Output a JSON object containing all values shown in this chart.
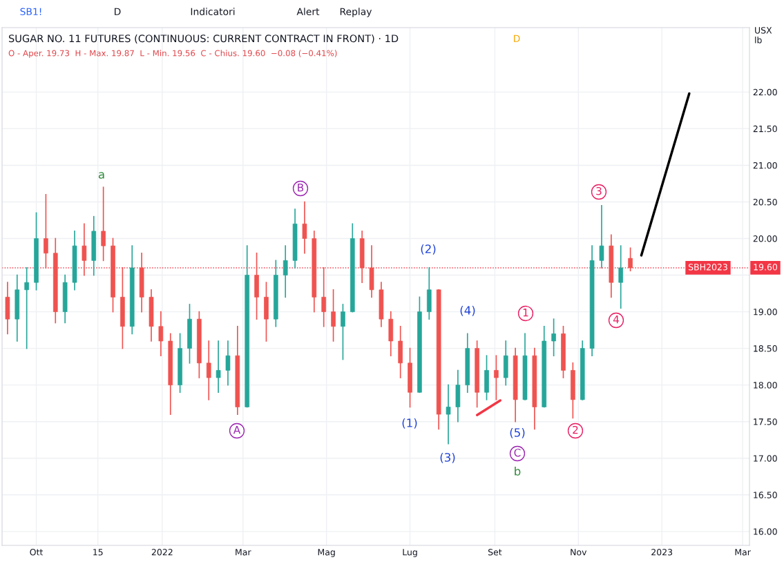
{
  "chart_data": {
    "type": "candlestick",
    "title": "SUGAR NO. 11 FUTURES (CONTINUOUS: CURRENT CONTRACT IN FRONT) · 1D",
    "subtitle": "O - Aper. 19.73  H - Max. 19.87  L - Min. 19.56  C - Chius. 19.60  −0.08 (−0.41%)",
    "ylabel": "USX lb",
    "x": [
      "2021-09-10",
      "2021-09-17",
      "2021-09-24",
      "2021-10-01",
      "2021-10-08",
      "2021-10-15",
      "2021-10-22",
      "2021-10-29",
      "2021-11-05",
      "2021-11-12",
      "2021-11-19",
      "2021-11-26",
      "2021-12-03",
      "2021-12-10",
      "2021-12-17",
      "2021-12-24",
      "2021-12-31",
      "2022-01-07",
      "2022-01-14",
      "2022-01-21",
      "2022-01-28",
      "2022-02-04",
      "2022-02-11",
      "2022-02-18",
      "2022-02-25",
      "2022-03-04",
      "2022-03-11",
      "2022-03-18",
      "2022-03-25",
      "2022-04-01",
      "2022-04-08",
      "2022-04-15",
      "2022-04-22",
      "2022-04-29",
      "2022-05-06",
      "2022-05-13",
      "2022-05-20",
      "2022-05-27",
      "2022-06-03",
      "2022-06-10",
      "2022-06-17",
      "2022-06-24",
      "2022-07-01",
      "2022-07-08",
      "2022-07-15",
      "2022-07-22",
      "2022-07-29",
      "2022-08-05",
      "2022-08-12",
      "2022-08-19",
      "2022-08-26",
      "2022-09-02",
      "2022-09-09",
      "2022-09-16",
      "2022-09-23",
      "2022-09-30",
      "2022-10-07",
      "2022-10-14",
      "2022-10-21",
      "2022-10-28",
      "2022-11-04",
      "2022-11-11",
      "2022-11-18",
      "2022-11-25",
      "2022-12-02",
      "2022-12-09"
    ],
    "ohlc": [
      [
        19.2,
        19.4,
        18.7,
        18.9
      ],
      [
        18.9,
        19.5,
        18.6,
        19.3
      ],
      [
        19.3,
        19.6,
        18.5,
        19.4
      ],
      [
        19.4,
        20.35,
        19.3,
        20.0
      ],
      [
        20.0,
        20.6,
        19.6,
        19.8
      ],
      [
        19.8,
        20.0,
        18.85,
        19.0
      ],
      [
        19.0,
        19.5,
        18.85,
        19.4
      ],
      [
        19.4,
        20.1,
        19.3,
        19.9
      ],
      [
        19.9,
        20.2,
        19.5,
        19.7
      ],
      [
        19.7,
        20.3,
        19.5,
        20.1
      ],
      [
        20.1,
        20.7,
        19.7,
        19.9
      ],
      [
        19.9,
        20.0,
        19.0,
        19.2
      ],
      [
        19.2,
        19.6,
        18.5,
        18.8
      ],
      [
        18.8,
        19.9,
        18.7,
        19.6
      ],
      [
        19.6,
        19.8,
        19.0,
        19.2
      ],
      [
        19.2,
        19.3,
        18.6,
        18.8
      ],
      [
        18.8,
        19.0,
        18.4,
        18.6
      ],
      [
        18.6,
        18.7,
        17.6,
        18.0
      ],
      [
        18.0,
        18.7,
        17.9,
        18.5
      ],
      [
        18.5,
        19.1,
        18.3,
        18.9
      ],
      [
        18.9,
        19.0,
        18.1,
        18.3
      ],
      [
        18.3,
        18.6,
        17.8,
        18.1
      ],
      [
        18.1,
        18.6,
        17.9,
        18.2
      ],
      [
        18.2,
        18.6,
        18.0,
        18.4
      ],
      [
        18.4,
        18.8,
        17.6,
        17.7
      ],
      [
        17.7,
        19.9,
        17.7,
        19.5
      ],
      [
        19.5,
        19.8,
        18.9,
        19.2
      ],
      [
        19.2,
        19.4,
        18.6,
        18.9
      ],
      [
        18.9,
        19.7,
        18.8,
        19.5
      ],
      [
        19.5,
        19.9,
        19.2,
        19.7
      ],
      [
        19.7,
        20.4,
        19.6,
        20.2
      ],
      [
        20.2,
        20.5,
        19.8,
        20.0
      ],
      [
        20.0,
        20.1,
        19.0,
        19.2
      ],
      [
        19.2,
        19.6,
        18.8,
        19.0
      ],
      [
        19.0,
        19.3,
        18.6,
        18.8
      ],
      [
        18.8,
        19.1,
        18.35,
        19.0
      ],
      [
        19.0,
        20.2,
        19.0,
        20.0
      ],
      [
        20.0,
        20.1,
        19.4,
        19.6
      ],
      [
        19.6,
        19.9,
        19.2,
        19.3
      ],
      [
        19.3,
        19.4,
        18.8,
        18.9
      ],
      [
        18.9,
        19.0,
        18.4,
        18.6
      ],
      [
        18.6,
        18.8,
        18.1,
        18.3
      ],
      [
        18.3,
        18.5,
        17.7,
        17.9
      ],
      [
        17.9,
        19.2,
        17.9,
        19.0
      ],
      [
        19.0,
        19.6,
        18.9,
        19.3
      ],
      [
        19.3,
        19.3,
        17.4,
        17.6
      ],
      [
        17.6,
        18.0,
        17.2,
        17.7
      ],
      [
        17.7,
        18.2,
        17.5,
        18.0
      ],
      [
        18.0,
        18.7,
        17.9,
        18.5
      ],
      [
        18.5,
        18.6,
        17.7,
        17.9
      ],
      [
        17.9,
        18.4,
        17.8,
        18.2
      ],
      [
        18.2,
        18.4,
        17.8,
        18.1
      ],
      [
        18.1,
        18.6,
        18.0,
        18.4
      ],
      [
        18.4,
        18.5,
        17.5,
        17.8
      ],
      [
        17.8,
        18.7,
        17.8,
        18.4
      ],
      [
        18.4,
        18.5,
        17.4,
        17.7
      ],
      [
        17.7,
        18.8,
        17.7,
        18.6
      ],
      [
        18.6,
        18.9,
        18.4,
        18.7
      ],
      [
        18.7,
        18.8,
        18.1,
        18.2
      ],
      [
        18.2,
        18.3,
        17.55,
        17.8
      ],
      [
        17.8,
        18.6,
        17.8,
        18.5
      ],
      [
        18.5,
        19.9,
        18.4,
        19.7
      ],
      [
        19.7,
        20.45,
        19.6,
        19.9
      ],
      [
        19.9,
        20.05,
        19.2,
        19.4
      ],
      [
        19.4,
        19.9,
        19.05,
        19.6
      ],
      [
        19.73,
        19.87,
        19.56,
        19.6
      ]
    ],
    "colors": [
      "#ef5350",
      "#26a69a",
      "#26a69a",
      "#26a69a",
      "#ef5350",
      "#ef5350",
      "#26a69a",
      "#26a69a",
      "#ef5350",
      "#26a69a",
      "#ef5350",
      "#ef5350",
      "#ef5350",
      "#26a69a",
      "#ef5350",
      "#ef5350",
      "#ef5350",
      "#ef5350",
      "#26a69a",
      "#26a69a",
      "#ef5350",
      "#ef5350",
      "#26a69a",
      "#26a69a",
      "#ef5350",
      "#26a69a",
      "#ef5350",
      "#ef5350",
      "#26a69a",
      "#26a69a",
      "#26a69a",
      "#ef5350",
      "#ef5350",
      "#ef5350",
      "#ef5350",
      "#26a69a",
      "#26a69a",
      "#ef5350",
      "#ef5350",
      "#ef5350",
      "#ef5350",
      "#ef5350",
      "#ef5350",
      "#26a69a",
      "#26a69a",
      "#ef5350",
      "#26a69a",
      "#26a69a",
      "#26a69a",
      "#ef5350",
      "#26a69a",
      "#ef5350",
      "#26a69a",
      "#ef5350",
      "#26a69a",
      "#ef5350",
      "#26a69a",
      "#26a69a",
      "#ef5350",
      "#ef5350",
      "#26a69a",
      "#26a69a",
      "#26a69a",
      "#ef5350",
      "#26a69a",
      "#ef5350"
    ],
    "series": [
      {
        "type": "line",
        "color": "#000000",
        "x": [
          "2022-12-17",
          "2023-01-21"
        ],
        "values": [
          19.77,
          21.98
        ]
      },
      {
        "type": "line",
        "color": "#f23645",
        "x": [
          "2022-08-19",
          "2022-09-05"
        ],
        "values": [
          17.59,
          17.79
        ]
      }
    ],
    "xlim": [
      "2021-09-06",
      "2023-03-06"
    ],
    "xticks": [
      {
        "value": "2021-10-01",
        "label": "Ott"
      },
      {
        "value": "2021-11-15",
        "label": "15"
      },
      {
        "value": "2022-01-01",
        "label": "2022"
      },
      {
        "value": "2022-03-01",
        "label": "Mar"
      },
      {
        "value": "2022-05-01",
        "label": "Mag"
      },
      {
        "value": "2022-07-01",
        "label": "Lug"
      },
      {
        "value": "2022-09-01",
        "label": "Set"
      },
      {
        "value": "2022-11-01",
        "label": "Nov"
      },
      {
        "value": "2023-01-01",
        "label": "2023"
      },
      {
        "value": "2023-03-01",
        "label": "Mar"
      }
    ],
    "ylim": [
      15.81,
      22.88
    ],
    "yticks": [
      {
        "value": 16,
        "label": "16.00"
      },
      {
        "value": 16.5,
        "label": "16.50"
      },
      {
        "value": 17,
        "label": "17.00"
      },
      {
        "value": 17.5,
        "label": "17.50"
      },
      {
        "value": 18,
        "label": "18.00"
      },
      {
        "value": 18.5,
        "label": "18.50"
      },
      {
        "value": 19,
        "label": "19.00"
      },
      {
        "value": 19.5,
        "label": null
      },
      {
        "value": 20,
        "label": "20.00"
      },
      {
        "value": 20.5,
        "label": "20.50"
      },
      {
        "value": 21,
        "label": "21.00"
      },
      {
        "value": 21.5,
        "label": "21.50"
      },
      {
        "value": 22,
        "label": "22.00"
      }
    ],
    "grid": true,
    "ref_lines": [
      {
        "axis": "y",
        "value": 19.6,
        "label": "SBH2023",
        "color": "#f23645",
        "line_style": "dotted"
      }
    ],
    "annotations": [
      "SB1!",
      "D",
      "Indicatori",
      "Alert",
      "Replay",
      "D",
      "a",
      "A",
      "B",
      "(1)",
      "(2)",
      "(3)",
      "(4)",
      "(5)",
      "C",
      "b",
      "1",
      "2",
      "3",
      "4",
      "19.60"
    ]
  }
}
